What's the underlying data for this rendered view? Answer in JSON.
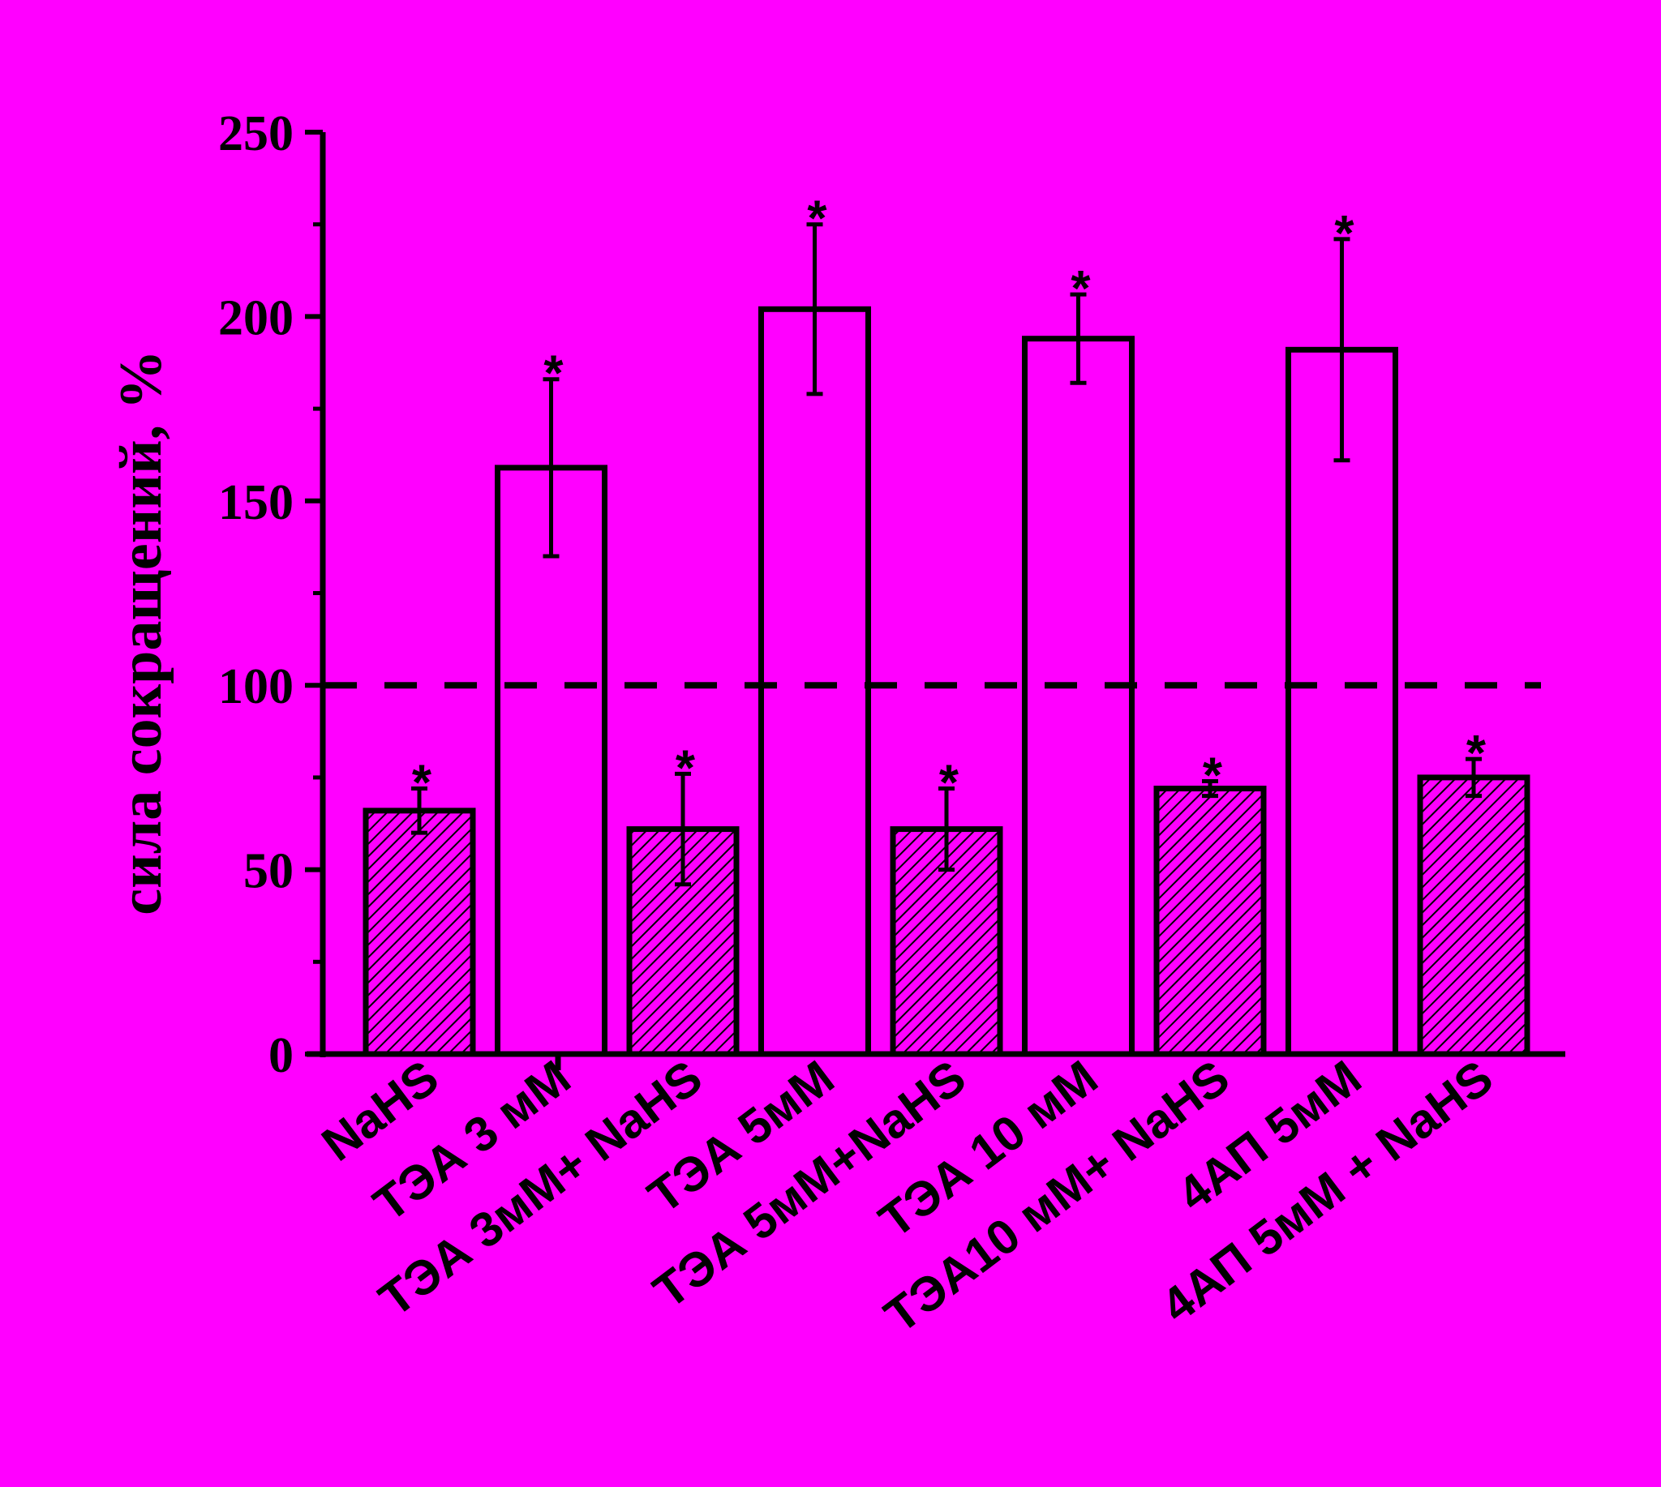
{
  "page": {
    "background": "#FF00FF"
  },
  "chart_data": {
    "type": "bar",
    "title": "",
    "xlabel": "",
    "ylabel": "сила сокращений, %",
    "ylim": [
      0,
      250
    ],
    "yticks": [
      "0",
      "50",
      "100",
      "150",
      "200",
      "250"
    ],
    "grid": false,
    "legend": "none",
    "reference_line": {
      "y": 100,
      "style": "dashed"
    },
    "categories": [
      "NaHS",
      "ТЭА 3 мМ",
      "ТЭА 3мМ+ NaHS",
      "ТЭА 5мМ",
      "ТЭА 5мМ+NaHS",
      "ТЭА 10 мМ",
      "ТЭА10 мМ+ NaHS",
      "4АП 5мМ",
      "4АП 5мМ + NaHS"
    ],
    "values": [
      66,
      159,
      61,
      202,
      61,
      194,
      72,
      191,
      75
    ],
    "errors": [
      6,
      24,
      15,
      23,
      11,
      12,
      2,
      30,
      5
    ],
    "fill": [
      "hatched",
      "open",
      "hatched",
      "open",
      "hatched",
      "open",
      "hatched",
      "open",
      "hatched"
    ],
    "significance": [
      "*",
      "*",
      "*",
      "*",
      "*",
      "*",
      "*",
      "*",
      "*"
    ],
    "colors": {
      "axis": "#000000",
      "bar_edge": "#000000",
      "hatch": "#000000"
    }
  }
}
